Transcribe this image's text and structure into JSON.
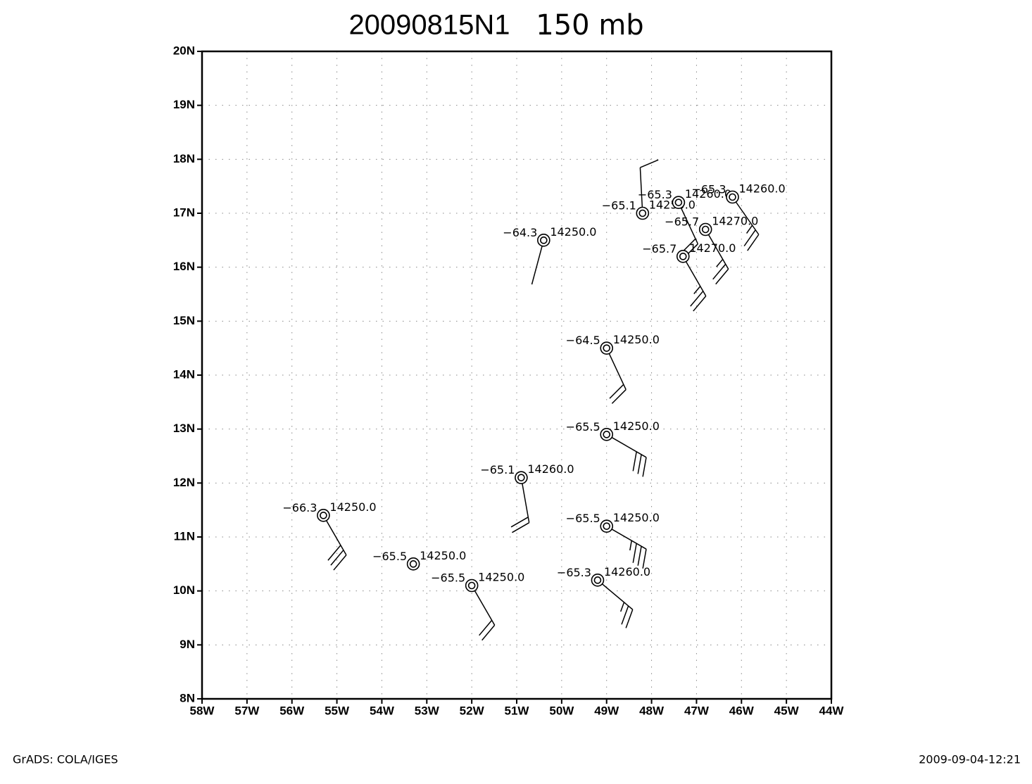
{
  "chart_data": {
    "type": "station",
    "title": "20090815N1",
    "subtitle": "150 mb",
    "footer_left": "GrADS: COLA/IGES",
    "footer_right": "2009-09-04-12:21",
    "xlim": [
      -58,
      -44
    ],
    "ylim": [
      8,
      20
    ],
    "xticks": [
      {
        "value": -58,
        "label": "58W"
      },
      {
        "value": -57,
        "label": "57W"
      },
      {
        "value": -56,
        "label": "56W"
      },
      {
        "value": -55,
        "label": "55W"
      },
      {
        "value": -54,
        "label": "54W"
      },
      {
        "value": -53,
        "label": "53W"
      },
      {
        "value": -52,
        "label": "52W"
      },
      {
        "value": -51,
        "label": "51W"
      },
      {
        "value": -50,
        "label": "50W"
      },
      {
        "value": -49,
        "label": "49W"
      },
      {
        "value": -48,
        "label": "48W"
      },
      {
        "value": -47,
        "label": "47W"
      },
      {
        "value": -46,
        "label": "46W"
      },
      {
        "value": -45,
        "label": "45W"
      },
      {
        "value": -44,
        "label": "44W"
      }
    ],
    "yticks": [
      {
        "value": 8,
        "label": "8N"
      },
      {
        "value": 9,
        "label": "9N"
      },
      {
        "value": 10,
        "label": "10N"
      },
      {
        "value": 11,
        "label": "11N"
      },
      {
        "value": 12,
        "label": "12N"
      },
      {
        "value": 13,
        "label": "13N"
      },
      {
        "value": 14,
        "label": "14N"
      },
      {
        "value": 15,
        "label": "15N"
      },
      {
        "value": 16,
        "label": "16N"
      },
      {
        "value": 17,
        "label": "17N"
      },
      {
        "value": 18,
        "label": "18N"
      },
      {
        "value": 19,
        "label": "19N"
      },
      {
        "value": 20,
        "label": "20N"
      }
    ],
    "grid": true,
    "color": "#000000",
    "stations": {
      "lon": [
        -50.4,
        -48.2,
        -47.4,
        -46.2,
        -46.8,
        -47.3,
        -49.0,
        -49.0,
        -50.9,
        -55.3,
        -49.0,
        -53.3,
        -52.0,
        -49.2
      ],
      "lat": [
        16.5,
        17.0,
        17.2,
        17.3,
        16.7,
        16.2,
        14.5,
        12.9,
        12.1,
        11.4,
        11.2,
        10.5,
        10.1,
        10.2
      ],
      "temperature": [
        -64.3,
        -65.1,
        -65.3,
        -65.3,
        -65.7,
        -65.7,
        -64.5,
        -65.5,
        -65.1,
        -66.3,
        -65.5,
        -65.5,
        -65.5,
        -65.3
      ],
      "temperature_labels": [
        "−64.3",
        "−65.1",
        "−65.3",
        "−65.3",
        "−65.7",
        "−65.7",
        "−64.5",
        "−65.5",
        "−65.1",
        "−66.3",
        "−65.5",
        "−65.5",
        "−65.5",
        "−65.3"
      ],
      "height": [
        14250,
        14250,
        14260,
        14260,
        14270,
        14270,
        14250,
        14250,
        14260,
        14250,
        14250,
        14250,
        14250,
        14260
      ],
      "height_labels": [
        "14250.0",
        "14250.0",
        "14260.0",
        "14260.0",
        "14270.0",
        "14270.0",
        "14250.0",
        "14250.0",
        "14260.0",
        "14250.0",
        "14250.0",
        "14250.0",
        "14250.0",
        "14260.0"
      ],
      "wind_dir": [
        195,
        357,
        155,
        145,
        150,
        150,
        155,
        120,
        170,
        150,
        120,
        null,
        150,
        130
      ],
      "wind_speed": [
        0,
        10,
        20,
        25,
        25,
        25,
        20,
        30,
        20,
        30,
        35,
        null,
        20,
        25
      ]
    }
  }
}
